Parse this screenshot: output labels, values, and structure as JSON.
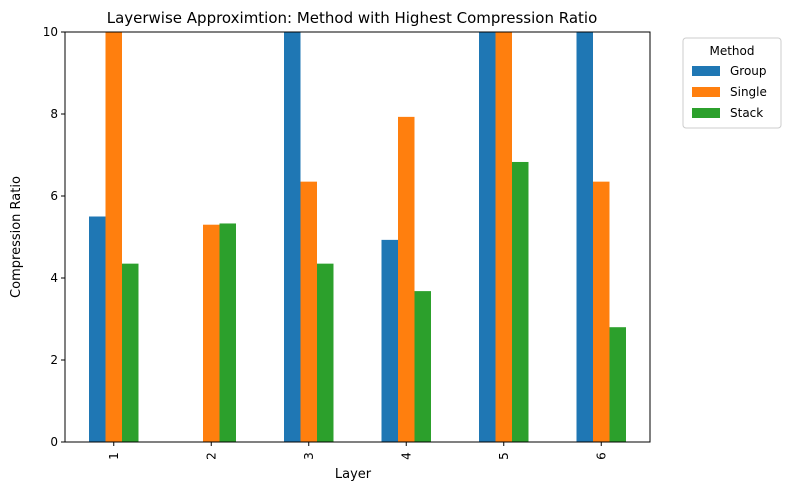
{
  "chart_data": {
    "type": "bar",
    "title": "Layerwise Approximtion: Method with Highest Compression Ratio",
    "xlabel": "Layer",
    "ylabel": "Compression Ratio",
    "categories": [
      "1",
      "2",
      "3",
      "4",
      "5",
      "6"
    ],
    "ylim": [
      0,
      10
    ],
    "yticks": [
      0,
      2,
      4,
      6,
      8,
      10
    ],
    "grid": false,
    "legend": {
      "title": "Method",
      "placement": "outside-top-right"
    },
    "series": [
      {
        "name": "Group",
        "color": "#1f77b4",
        "values": [
          5.5,
          null,
          10.0,
          4.93,
          10.0,
          10.0
        ]
      },
      {
        "name": "Single",
        "color": "#ff7f0e",
        "values": [
          10.0,
          5.3,
          6.35,
          7.93,
          10.0,
          6.35
        ]
      },
      {
        "name": "Stack",
        "color": "#2ca02c",
        "values": [
          4.35,
          5.33,
          4.35,
          3.68,
          6.83,
          2.8
        ]
      }
    ]
  }
}
